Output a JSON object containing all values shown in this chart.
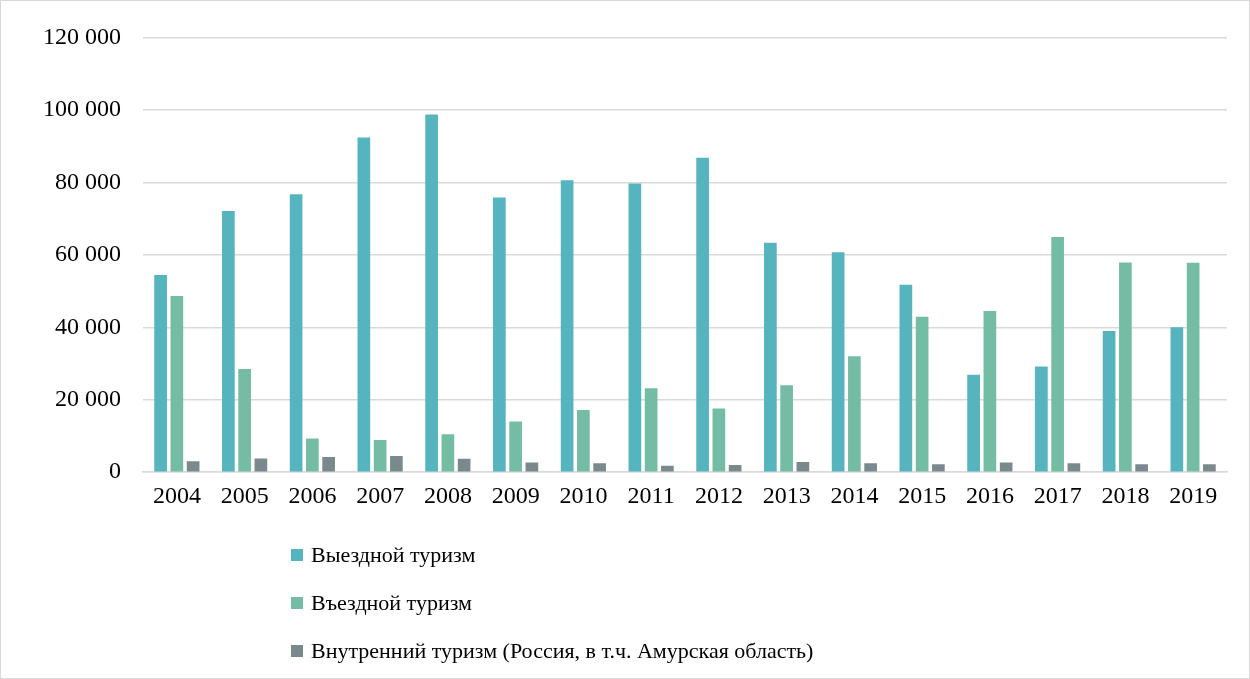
{
  "chart_data": {
    "type": "bar",
    "categories": [
      "2004",
      "2005",
      "2006",
      "2007",
      "2008",
      "2009",
      "2010",
      "2011",
      "2012",
      "2013",
      "2014",
      "2015",
      "2016",
      "2017",
      "2018",
      "2019"
    ],
    "series": [
      {
        "name": "Выездной туризм",
        "color": "#56b4be",
        "values": [
          54400,
          72100,
          76700,
          92400,
          98700,
          75800,
          80600,
          79700,
          86800,
          63300,
          60700,
          51700,
          26900,
          29200,
          39000,
          40000
        ]
      },
      {
        "name": "Въездной туризм",
        "color": "#75bca4",
        "values": [
          48600,
          28500,
          9300,
          8900,
          10500,
          14000,
          17200,
          23200,
          17600,
          24000,
          32000,
          42900,
          44500,
          64900,
          57900,
          57800
        ]
      },
      {
        "name": "Внутренний туризм (Россия, в т.ч. Амурская область)",
        "color": "#7a8a8c",
        "values": [
          3000,
          3800,
          4200,
          4500,
          3700,
          2700,
          2500,
          1800,
          2000,
          2800,
          2500,
          2200,
          2700,
          2500,
          2200,
          2200
        ]
      }
    ],
    "ylim": [
      0,
      120000
    ],
    "yticks": [
      {
        "value": 0,
        "label": "0"
      },
      {
        "value": 20000,
        "label": "20 000"
      },
      {
        "value": 40000,
        "label": "40 000"
      },
      {
        "value": 60000,
        "label": "60 000"
      },
      {
        "value": 80000,
        "label": "80 000"
      },
      {
        "value": 100000,
        "label": "100 000"
      },
      {
        "value": 120000,
        "label": "120 000"
      }
    ],
    "grid": "y",
    "legend": "bottom"
  }
}
